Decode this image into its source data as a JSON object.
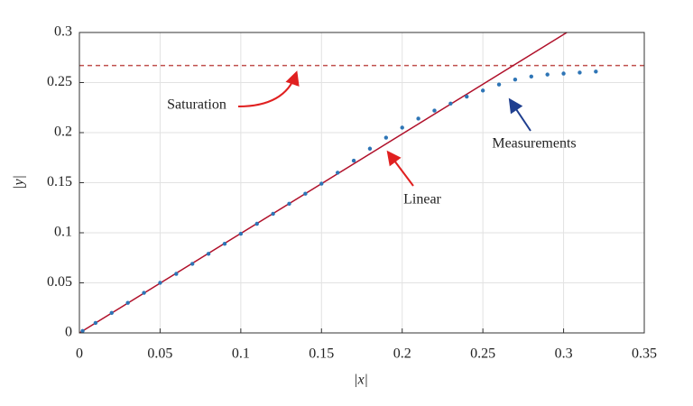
{
  "chart_data": {
    "type": "scatter",
    "xlabel": "|x|",
    "ylabel": "|y|",
    "xlim": [
      0,
      0.35
    ],
    "xticks": [
      0,
      0.05,
      0.1,
      0.15,
      0.2,
      0.25,
      0.3,
      0.35
    ],
    "ylim": [
      0,
      0.3
    ],
    "yticks": [
      0,
      0.05,
      0.1,
      0.15,
      0.2,
      0.25,
      0.3
    ],
    "grid": true,
    "series": [
      {
        "name": "Saturation",
        "type": "line",
        "dashed": true,
        "color": "#c0504d",
        "x": [
          0,
          0.35
        ],
        "values": [
          0.267,
          0.267
        ]
      },
      {
        "name": "Linear",
        "type": "line",
        "color": "#b0102a",
        "x": [
          0,
          0.302
        ],
        "values": [
          0,
          0.3
        ]
      },
      {
        "name": "Measurements",
        "type": "scatter",
        "color": "#2e75b6",
        "x": [
          0.002,
          0.01,
          0.02,
          0.03,
          0.04,
          0.05,
          0.06,
          0.07,
          0.08,
          0.09,
          0.1,
          0.11,
          0.12,
          0.13,
          0.14,
          0.15,
          0.16,
          0.17,
          0.18,
          0.19,
          0.2,
          0.21,
          0.22,
          0.23,
          0.24,
          0.25,
          0.26,
          0.27,
          0.28,
          0.29,
          0.3,
          0.31,
          0.32
        ],
        "values": [
          0.002,
          0.01,
          0.02,
          0.03,
          0.04,
          0.05,
          0.059,
          0.069,
          0.079,
          0.089,
          0.099,
          0.109,
          0.119,
          0.129,
          0.139,
          0.149,
          0.16,
          0.172,
          0.184,
          0.195,
          0.205,
          0.214,
          0.222,
          0.229,
          0.236,
          0.242,
          0.248,
          0.253,
          0.256,
          0.258,
          0.259,
          0.26,
          0.261
        ]
      }
    ]
  }
}
